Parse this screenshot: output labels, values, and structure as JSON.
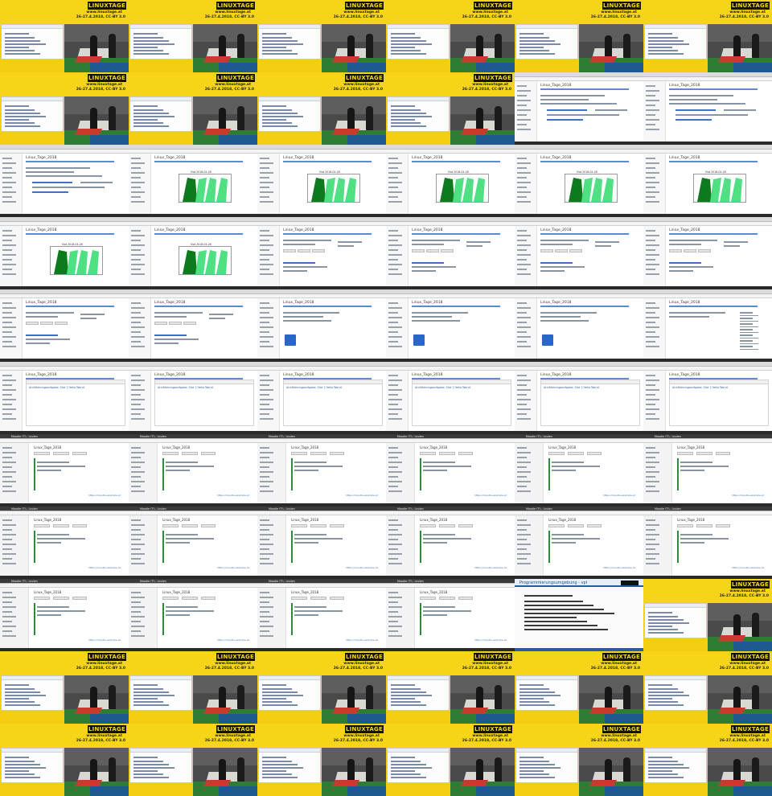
{
  "stage": {
    "logo": "LINUXTAGE",
    "url": "www.linuxtage.at",
    "date": "26-27.4.2018, CC-BY 3.0"
  },
  "browser": {
    "tab_title": "Moodle IT'L: Linden",
    "course_title": "Linux_Tage_2018",
    "chart_caption": "Slot 2018-04-26",
    "moodle_title": "Linux_Tage_2018",
    "exercise_title": "Annäherungsaufgabe: Slot 1 Hello World",
    "dark_link": "https://moodle.example.at"
  },
  "slide": {
    "title": "Programmierungsumgebung - vpl"
  },
  "tiles": [
    "stage",
    "stage",
    "stage",
    "stage",
    "stage",
    "stage",
    "stage",
    "stage",
    "stage",
    "stage",
    "web",
    "web",
    "web",
    "chart",
    "chart",
    "chart",
    "chart",
    "chart",
    "chart",
    "chart",
    "form",
    "form",
    "form",
    "form",
    "form",
    "form",
    "badge",
    "badge",
    "badge",
    "list",
    "editor",
    "editor",
    "editor",
    "editor",
    "editor",
    "editor",
    "mdark",
    "mdark",
    "mdark",
    "mdark",
    "mdark",
    "mdark",
    "mdark",
    "mdark",
    "mdark",
    "mdark",
    "mdark",
    "mdark",
    "mdark",
    "mdark",
    "mdark",
    "mdark",
    "slide",
    "stage",
    "stage",
    "stage",
    "stage",
    "stage",
    "stage",
    "stage",
    "stage",
    "stage",
    "stage",
    "stage",
    "stage",
    "stage"
  ],
  "colors": {
    "yellow": "#f6d518",
    "moodle_blue": "#3f72c4",
    "chart_dark": "#0e7a1e",
    "chart_light": "#4ee083",
    "badge_blue": "#2a66c9"
  }
}
